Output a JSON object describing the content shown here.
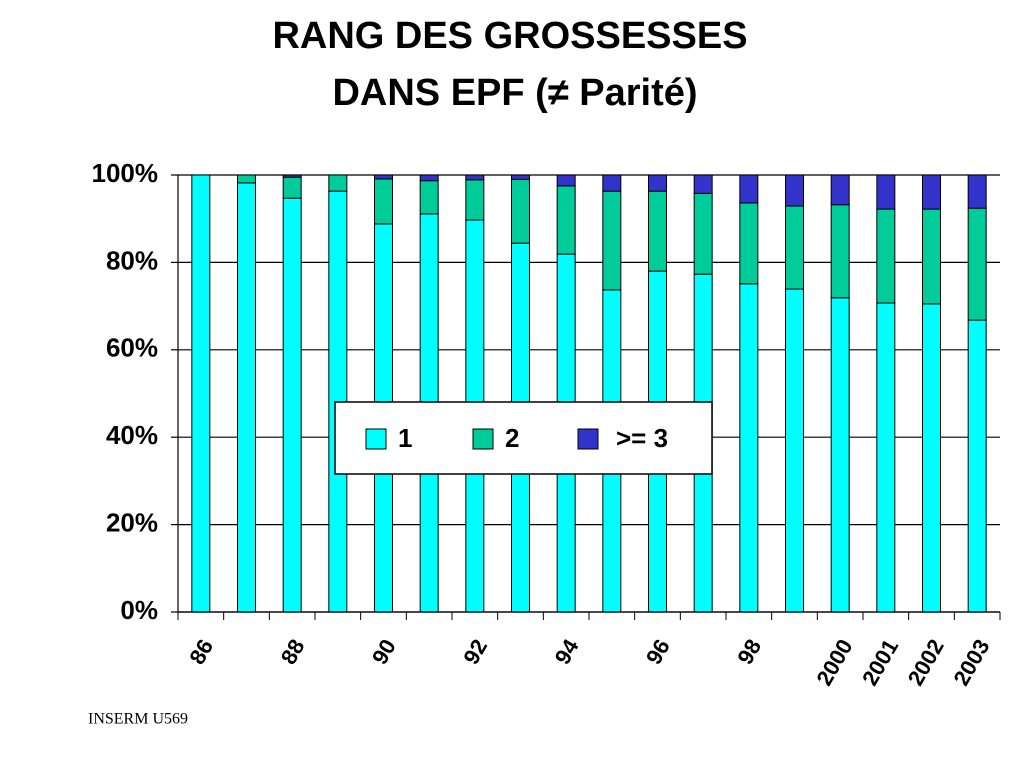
{
  "chart_data": {
    "type": "stacked-bar",
    "title": [
      "RANG DES GROSSESSES",
      "DANS EPF (≠ Parité)"
    ],
    "categories": [
      "86",
      null,
      "88",
      null,
      "90",
      null,
      "92",
      null,
      "94",
      null,
      "96",
      null,
      "98",
      null,
      "2000",
      "2001",
      "2002",
      "2003"
    ],
    "series": [
      {
        "name": "1",
        "color": "#00ffff",
        "values": [
          100,
          98.2,
          94.7,
          96.3,
          88.8,
          91.1,
          89.7,
          84.4,
          81.9,
          73.7,
          78.0,
          77.3,
          75.1,
          73.9,
          71.9,
          70.7,
          70.5,
          66.8
        ]
      },
      {
        "name": "2",
        "color": "#00cc99",
        "values": [
          0,
          1.8,
          4.8,
          3.7,
          10.3,
          7.6,
          9.2,
          14.6,
          15.6,
          22.6,
          18.3,
          18.5,
          18.5,
          19.0,
          21.3,
          21.5,
          21.7,
          25.6
        ]
      },
      {
        "name": ">= 3",
        "color": "#3333cc",
        "values": [
          0,
          0,
          0.5,
          0,
          0.9,
          1.3,
          1.1,
          1.0,
          2.5,
          3.7,
          3.7,
          4.2,
          6.4,
          7.1,
          6.8,
          7.8,
          7.8,
          7.6
        ]
      }
    ],
    "ylim": [
      0,
      100
    ],
    "yticks": [
      {
        "value": 0,
        "label": "0%"
      },
      {
        "value": 20,
        "label": "20%"
      },
      {
        "value": 40,
        "label": "40%"
      },
      {
        "value": 60,
        "label": "60%"
      },
      {
        "value": 80,
        "label": "80%"
      },
      {
        "value": 100,
        "label": "100%"
      }
    ],
    "grid": true,
    "footer": "INSERM U569"
  }
}
